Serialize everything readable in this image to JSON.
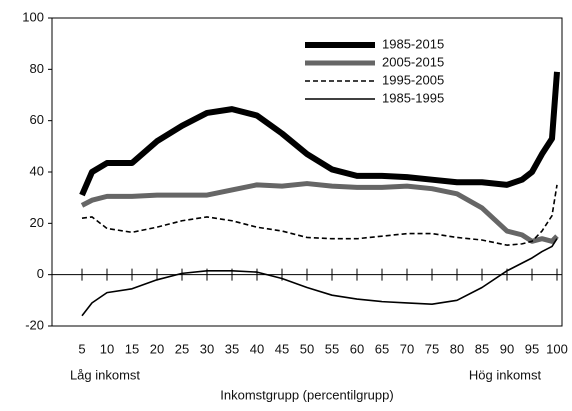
{
  "chart_data": {
    "type": "line",
    "xlabel": "Inkomstgrupp (percentilgrupp)",
    "annotations": [
      "Låg inkomst",
      "Hög inkomst"
    ],
    "x": [
      5,
      7,
      10,
      15,
      20,
      25,
      30,
      35,
      40,
      45,
      50,
      55,
      60,
      65,
      70,
      75,
      80,
      85,
      90,
      93,
      95,
      97,
      99,
      100
    ],
    "series": [
      {
        "name": "1985-2015",
        "color": "#000000",
        "values": [
          31,
          40,
          43.5,
          43.5,
          52,
          58,
          63,
          64.5,
          62,
          55,
          47,
          41,
          38.5,
          38.5,
          38,
          37,
          36,
          36,
          35,
          37,
          40,
          47,
          53,
          79
        ]
      },
      {
        "name": "2005-2015",
        "color": "#666666",
        "values": [
          27,
          29,
          30.5,
          30.5,
          31,
          31,
          31,
          33,
          35,
          34.5,
          35.5,
          34.5,
          34,
          34,
          34.5,
          33.5,
          31.5,
          26,
          17,
          15.5,
          13,
          14,
          13,
          15
        ]
      },
      {
        "name": "1995-2005",
        "color": "#000000",
        "values": [
          22,
          22.5,
          18,
          16.5,
          18.5,
          21,
          22.5,
          21,
          18.5,
          17,
          14.5,
          14,
          14,
          15,
          16,
          16,
          14.5,
          13.5,
          11.5,
          12,
          13,
          17,
          23,
          35
        ]
      },
      {
        "name": "1985-1995",
        "color": "#000000",
        "values": [
          -16,
          -11,
          -7,
          -5.5,
          -2,
          0.5,
          1.5,
          1.5,
          1,
          -1.5,
          -5,
          -8,
          -9.5,
          -10.5,
          -11,
          -11.5,
          -10,
          -5,
          1.5,
          4.5,
          6.5,
          9,
          11,
          14
        ]
      }
    ],
    "xlim": [
      -1,
      101
    ],
    "ylim": [
      -20,
      100
    ],
    "xticks": [
      5,
      10,
      15,
      20,
      25,
      30,
      35,
      40,
      45,
      50,
      55,
      60,
      65,
      70,
      75,
      80,
      85,
      90,
      95,
      100
    ],
    "yticks": [
      -20,
      0,
      20,
      40,
      60,
      80,
      100
    ],
    "legend": "upper right"
  }
}
